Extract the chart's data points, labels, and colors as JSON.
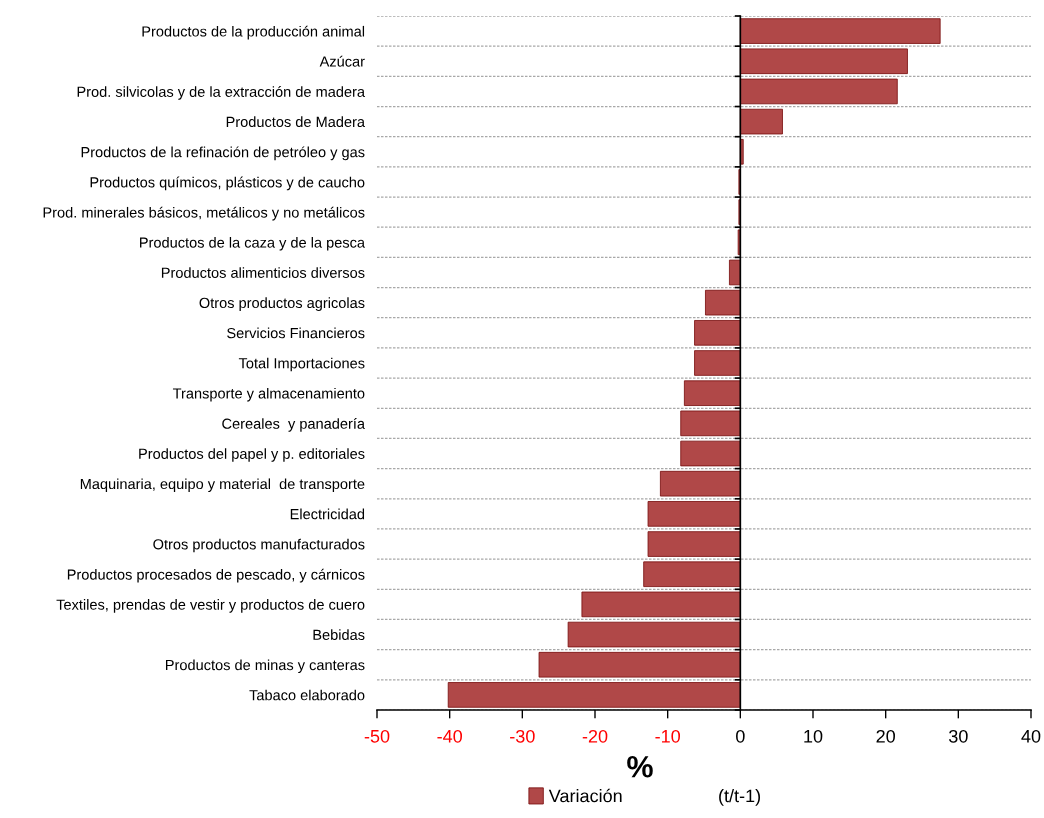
{
  "chart_data": {
    "type": "bar",
    "orientation": "horizontal",
    "categories": [
      "Productos de la producción animal",
      "Azúcar",
      "Prod. silvicolas y de la extracción de madera",
      "Productos de Madera",
      "Productos de la refinación de petróleo y gas",
      "Productos químicos, plásticos y de caucho",
      "Prod. minerales básicos, metálicos y no metálicos",
      "Productos de la caza y de la pesca",
      "Productos alimenticios diversos",
      "Otros productos agricolas",
      "Servicios Financieros",
      "Total Importaciones",
      "Transporte y almacenamiento",
      "Cereales  y panadería",
      "Productos del papel y p. editoriales",
      "Maquinaria, equipo y material  de transporte",
      "Electricidad",
      "Otros productos manufacturados",
      "Productos procesados de pescado, y cárnicos",
      "Textiles, prendas de vestir y productos de cuero",
      "Bebidas",
      "Productos de minas y canteras",
      "Tabaco elaborado"
    ],
    "series": [
      {
        "name": "Variación                   (t/t-1)",
        "color": "#b04848",
        "values": [
          27.5,
          23.0,
          21.6,
          5.8,
          0.4,
          -0.2,
          -0.2,
          -0.3,
          -1.5,
          -4.8,
          -6.3,
          -6.3,
          -7.7,
          -8.2,
          -8.2,
          -11.0,
          -12.7,
          -12.7,
          -13.3,
          -21.8,
          -23.7,
          -27.7,
          -40.2
        ]
      }
    ],
    "xlim": [
      -50,
      40
    ],
    "xticks": [
      -50,
      -40,
      -30,
      -20,
      -10,
      0,
      10,
      20,
      30,
      40
    ],
    "xlabel": "%",
    "grid": "y",
    "legend": "bottom"
  }
}
